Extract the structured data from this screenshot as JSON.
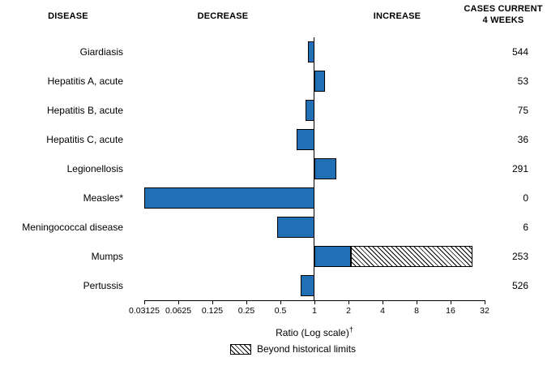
{
  "header": {
    "disease": "DISEASE",
    "decrease": "DECREASE",
    "increase": "INCREASE",
    "cases_line1": "CASES CURRENT",
    "cases_line2": "4 WEEKS"
  },
  "chart_data": {
    "type": "bar",
    "orientation": "horizontal",
    "scale": "log2",
    "axis": {
      "min": 0.03125,
      "max": 32,
      "baseline": 1,
      "ticks": [
        0.03125,
        0.0625,
        0.125,
        0.25,
        0.5,
        1,
        2,
        4,
        8,
        16,
        32
      ],
      "tick_labels": [
        "0.03125",
        "0.0625",
        "0.125",
        "0.25",
        "0.5",
        "1",
        "2",
        "4",
        "8",
        "16",
        "32"
      ],
      "xlabel": "Ratio (Log scale)",
      "xlabel_superscript": "†"
    },
    "legend": {
      "label": "Beyond historical limits",
      "style": "hatched"
    },
    "colors": {
      "bar": "#2170b6",
      "bar_border": "#000000"
    },
    "rows": [
      {
        "label": "Giardiasis",
        "ratio": 0.88,
        "beyond_start": null,
        "cases": "544"
      },
      {
        "label": "Hepatitis A, acute",
        "ratio": 1.24,
        "beyond_start": null,
        "cases": "53"
      },
      {
        "label": "Hepatitis B, acute",
        "ratio": 0.84,
        "beyond_start": null,
        "cases": "75"
      },
      {
        "label": "Hepatitis C, acute",
        "ratio": 0.7,
        "beyond_start": null,
        "cases": "36"
      },
      {
        "label": "Legionellosis",
        "ratio": 1.55,
        "beyond_start": null,
        "cases": "291"
      },
      {
        "label": "Measles*",
        "ratio": 0.03125,
        "beyond_start": null,
        "cases": "0"
      },
      {
        "label": "Meningococcal disease",
        "ratio": 0.47,
        "beyond_start": null,
        "cases": "6"
      },
      {
        "label": "Mumps",
        "ratio": 25,
        "beyond_start": 2.1,
        "cases": "253"
      },
      {
        "label": "Pertussis",
        "ratio": 0.76,
        "beyond_start": null,
        "cases": "526"
      }
    ]
  }
}
